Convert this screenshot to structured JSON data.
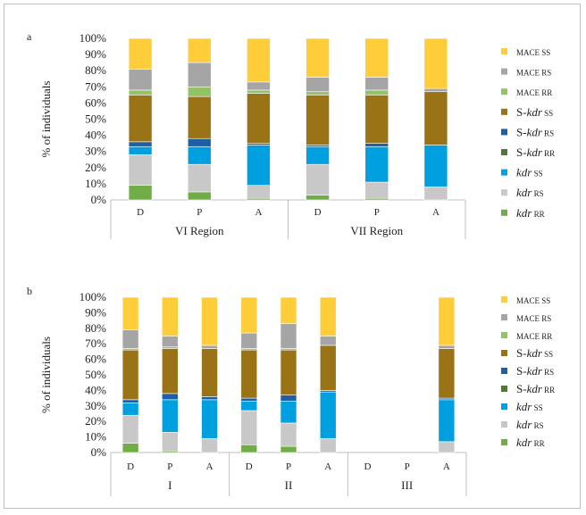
{
  "chart_data": [
    {
      "panel_label": "a",
      "type": "bar",
      "stacked": "percent",
      "ylabel": "% of individuals",
      "ylim": [
        0,
        100
      ],
      "yticks": [
        "0%",
        "10%",
        "20%",
        "30%",
        "40%",
        "50%",
        "60%",
        "70%",
        "80%",
        "90%",
        "100%"
      ],
      "groups": [
        {
          "label": "VI Region",
          "categories": [
            "D",
            "P",
            "A"
          ]
        },
        {
          "label": "VII Region",
          "categories": [
            "D",
            "P",
            "A"
          ]
        }
      ],
      "legend_position": "right",
      "series": [
        {
          "name": "kdr RR",
          "values": [
            9,
            5,
            1,
            3,
            1,
            0
          ]
        },
        {
          "name": "kdr RS",
          "values": [
            19,
            17,
            8,
            19,
            10,
            8
          ]
        },
        {
          "name": "kdr SS",
          "values": [
            5,
            11,
            25,
            11,
            22,
            26
          ]
        },
        {
          "name": "S-kdr RR",
          "values": [
            0,
            0,
            0,
            0,
            0,
            0
          ]
        },
        {
          "name": "S-kdr RS",
          "values": [
            3,
            5,
            1,
            1,
            2,
            0
          ]
        },
        {
          "name": "S-kdr SS",
          "values": [
            29,
            26,
            31,
            31,
            30,
            33
          ]
        },
        {
          "name": "MACE RR",
          "values": [
            3,
            6,
            2,
            2,
            3,
            0
          ]
        },
        {
          "name": "MACE RS",
          "values": [
            13,
            15,
            5,
            9,
            8,
            2
          ]
        },
        {
          "name": "MACE SS",
          "values": [
            19,
            15,
            27,
            24,
            24,
            31
          ]
        }
      ]
    },
    {
      "panel_label": "b",
      "type": "bar",
      "stacked": "percent",
      "ylabel": "% of individuals",
      "ylim": [
        0,
        100
      ],
      "yticks": [
        "0%",
        "10%",
        "20%",
        "30%",
        "40%",
        "50%",
        "60%",
        "70%",
        "80%",
        "90%",
        "100%"
      ],
      "groups": [
        {
          "label": "I",
          "categories": [
            "D",
            "P",
            "A"
          ]
        },
        {
          "label": "II",
          "categories": [
            "D",
            "P",
            "A"
          ]
        },
        {
          "label": "III",
          "categories": [
            "D",
            "P",
            "A"
          ]
        }
      ],
      "legend_position": "right",
      "series": [
        {
          "name": "kdr RR",
          "values": [
            6,
            1,
            0,
            5,
            4,
            0,
            0,
            0,
            0
          ]
        },
        {
          "name": "kdr RS",
          "values": [
            18,
            12,
            9,
            22,
            15,
            9,
            0,
            0,
            7
          ]
        },
        {
          "name": "kdr SS",
          "values": [
            8,
            21,
            25,
            6,
            14,
            30,
            0,
            0,
            27
          ]
        },
        {
          "name": "S-kdr RR",
          "values": [
            0,
            0,
            0,
            0,
            0,
            0,
            0,
            0,
            0
          ]
        },
        {
          "name": "S-kdr RS",
          "values": [
            2,
            4,
            2,
            2,
            4,
            1,
            0,
            0,
            1
          ]
        },
        {
          "name": "S-kdr SS",
          "values": [
            32,
            29,
            31,
            31,
            29,
            29,
            0,
            0,
            32
          ]
        },
        {
          "name": "MACE RR",
          "values": [
            1,
            1,
            0,
            1,
            1,
            0,
            0,
            0,
            0
          ]
        },
        {
          "name": "MACE RS",
          "values": [
            12,
            7,
            2,
            10,
            16,
            6,
            0,
            0,
            2
          ]
        },
        {
          "name": "MACE SS",
          "values": [
            21,
            25,
            31,
            23,
            17,
            25,
            0,
            0,
            31
          ]
        }
      ]
    }
  ],
  "legend": [
    {
      "prefix": "",
      "italic": "",
      "suffix": "MACE SS",
      "color": "#FFCC3A"
    },
    {
      "prefix": "",
      "italic": "",
      "suffix": "MACE RS",
      "color": "#A5A5A5"
    },
    {
      "prefix": "",
      "italic": "",
      "suffix": "MACE RR",
      "color": "#92C465"
    },
    {
      "prefix": "S-",
      "italic": "kdr",
      "suffix": " SS",
      "color": "#997316"
    },
    {
      "prefix": "S-",
      "italic": "kdr",
      "suffix": " RS",
      "color": "#1F5FA6"
    },
    {
      "prefix": "S-",
      "italic": "kdr",
      "suffix": " RR",
      "color": "#4E7A36"
    },
    {
      "prefix": "",
      "italic": "kdr",
      "suffix": " SS",
      "color": "#009FE0"
    },
    {
      "prefix": "",
      "italic": "kdr",
      "suffix": " RS",
      "color": "#C8C8C8"
    },
    {
      "prefix": "",
      "italic": "kdr",
      "suffix": " RR",
      "color": "#70AD47"
    }
  ]
}
